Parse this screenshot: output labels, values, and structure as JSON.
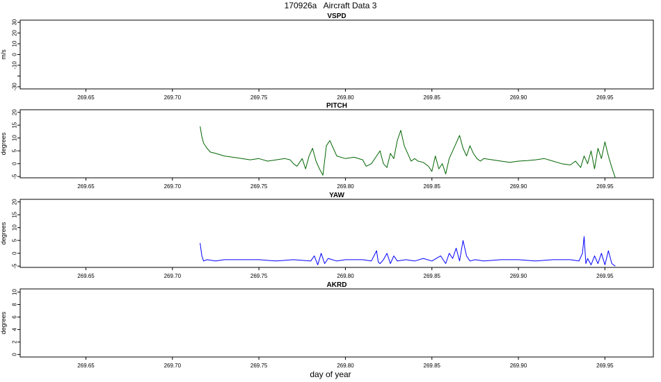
{
  "figure": {
    "title": "170926a   Aircraft Data 3",
    "xlabel": "day of year"
  },
  "chart_data": [
    {
      "type": "line",
      "title": "VSPD",
      "ylabel": "m/s",
      "xlim": [
        269.612,
        269.978
      ],
      "ylim": [
        -32,
        32
      ],
      "xticks": [
        269.65,
        269.7,
        269.75,
        269.8,
        269.85,
        269.9,
        269.95
      ],
      "xtick_labels": [
        "269.65",
        "269.70",
        "269.75",
        "269.80",
        "269.85",
        "269.90",
        "269.95"
      ],
      "yticks": [
        -30,
        -20,
        -10,
        0,
        10,
        20,
        30
      ],
      "ytick_labels": [
        "-30",
        "",
        "-10",
        "0",
        "10",
        "20",
        "30"
      ],
      "series": [
        {
          "color": "#000000",
          "x": [],
          "y": []
        }
      ]
    },
    {
      "type": "line",
      "title": "PITCH",
      "ylabel": "degrees",
      "xlim": [
        269.612,
        269.978
      ],
      "ylim": [
        -5.5,
        21
      ],
      "xticks": [
        269.65,
        269.7,
        269.75,
        269.8,
        269.85,
        269.9,
        269.95
      ],
      "xtick_labels": [
        "269.65",
        "269.70",
        "269.75",
        "269.80",
        "269.85",
        "269.90",
        "269.95"
      ],
      "yticks": [
        -5,
        0,
        5,
        10,
        15,
        20
      ],
      "ytick_labels": [
        "-5",
        "0",
        "5",
        "10",
        "15",
        "20"
      ],
      "series": [
        {
          "color": "#006400",
          "x": [
            269.716,
            269.717,
            269.718,
            269.72,
            269.722,
            269.725,
            269.73,
            269.735,
            269.74,
            269.745,
            269.75,
            269.755,
            269.76,
            269.765,
            269.768,
            269.77,
            269.772,
            269.775,
            269.777,
            269.779,
            269.781,
            269.783,
            269.785,
            269.787,
            269.789,
            269.791,
            269.793,
            269.795,
            269.8,
            269.805,
            269.81,
            269.812,
            269.815,
            269.818,
            269.82,
            269.822,
            269.824,
            269.826,
            269.828,
            269.83,
            269.832,
            269.834,
            269.836,
            269.838,
            269.84,
            269.842,
            269.845,
            269.848,
            269.85,
            269.852,
            269.854,
            269.856,
            269.858,
            269.86,
            269.862,
            269.864,
            269.866,
            269.868,
            269.87,
            269.872,
            269.874,
            269.876,
            269.878,
            269.88,
            269.885,
            269.89,
            269.895,
            269.9,
            269.905,
            269.91,
            269.915,
            269.92,
            269.925,
            269.93,
            269.933,
            269.936,
            269.938,
            269.94,
            269.942,
            269.944,
            269.946,
            269.948,
            269.95,
            269.952,
            269.954,
            269.956
          ],
          "y": [
            14.5,
            10.5,
            8,
            6,
            4.5,
            4,
            3,
            2.5,
            2,
            1.5,
            2,
            1,
            1.5,
            2,
            1.5,
            0,
            -1,
            2,
            -2,
            3,
            6,
            1,
            -2,
            -4.5,
            7,
            9,
            6,
            3,
            2,
            2.5,
            1.5,
            -1,
            0,
            3,
            5,
            0,
            -1.5,
            4,
            2,
            9,
            13,
            7,
            4,
            1,
            2,
            1,
            0.5,
            -1,
            -3,
            3,
            -2,
            0,
            -4,
            2,
            5,
            8,
            11,
            6,
            3,
            7,
            4,
            2,
            1,
            2,
            1.5,
            1,
            0.5,
            1,
            1.2,
            1.5,
            2,
            1,
            0,
            -0.5,
            1,
            -1.5,
            3,
            0,
            5,
            -2,
            6,
            2,
            8.5,
            3,
            -1.5,
            -5.5
          ]
        }
      ]
    },
    {
      "type": "line",
      "title": "YAW",
      "ylabel": "degrees",
      "xlim": [
        269.612,
        269.978
      ],
      "ylim": [
        -5.5,
        21
      ],
      "xticks": [
        269.65,
        269.7,
        269.75,
        269.8,
        269.85,
        269.9,
        269.95
      ],
      "xtick_labels": [
        "269.65",
        "269.70",
        "269.75",
        "269.80",
        "269.85",
        "269.90",
        "269.95"
      ],
      "yticks": [
        -5,
        0,
        5,
        10,
        15,
        20
      ],
      "ytick_labels": [
        "-5",
        "0",
        "5",
        "10",
        "15",
        "20"
      ],
      "series": [
        {
          "color": "#0000ff",
          "x": [
            269.716,
            269.717,
            269.718,
            269.72,
            269.725,
            269.73,
            269.74,
            269.75,
            269.76,
            269.77,
            269.78,
            269.782,
            269.784,
            269.786,
            269.788,
            269.79,
            269.795,
            269.8,
            269.81,
            269.815,
            269.818,
            269.819,
            269.82,
            269.822,
            269.824,
            269.826,
            269.828,
            269.83,
            269.835,
            269.84,
            269.845,
            269.85,
            269.855,
            269.858,
            269.86,
            269.862,
            269.864,
            269.866,
            269.868,
            269.87,
            269.872,
            269.875,
            269.88,
            269.89,
            269.9,
            269.91,
            269.92,
            269.93,
            269.935,
            269.937,
            269.938,
            269.939,
            269.94,
            269.942,
            269.944,
            269.946,
            269.948,
            269.95,
            269.952,
            269.954,
            269.956
          ],
          "y": [
            4,
            -1,
            -3,
            -2.5,
            -3,
            -2.5,
            -2.5,
            -2.5,
            -3,
            -2.5,
            -3,
            -1,
            -4.5,
            0,
            -4,
            -2,
            -3,
            -2.5,
            -2.5,
            -3,
            1,
            -3.5,
            -4,
            -2.5,
            0,
            -4,
            -1,
            -3,
            -2.5,
            -3,
            -2,
            -3,
            -1,
            -4,
            0,
            -2,
            2,
            -3,
            5,
            -1,
            -3,
            -2.5,
            -3,
            -2.5,
            -2.5,
            -3,
            -2.5,
            -2.5,
            -3,
            0,
            6.5,
            -4,
            -2,
            -4.5,
            -1,
            -4,
            0,
            -4.5,
            1,
            -4,
            -5
          ]
        }
      ]
    },
    {
      "type": "line",
      "title": "AKRD",
      "ylabel": "degrees",
      "xlim": [
        269.612,
        269.978
      ],
      "ylim": [
        -0.4,
        10.5
      ],
      "xticks": [
        269.65,
        269.7,
        269.75,
        269.8,
        269.85,
        269.9,
        269.95
      ],
      "xtick_labels": [
        "269.65",
        "269.70",
        "269.75",
        "269.80",
        "269.85",
        "269.90",
        "269.95"
      ],
      "yticks": [
        0,
        2,
        4,
        6,
        8,
        10
      ],
      "ytick_labels": [
        "0",
        "2",
        "4",
        "6",
        "8",
        "10"
      ],
      "series": [
        {
          "color": "#000000",
          "x": [],
          "y": []
        }
      ]
    }
  ]
}
